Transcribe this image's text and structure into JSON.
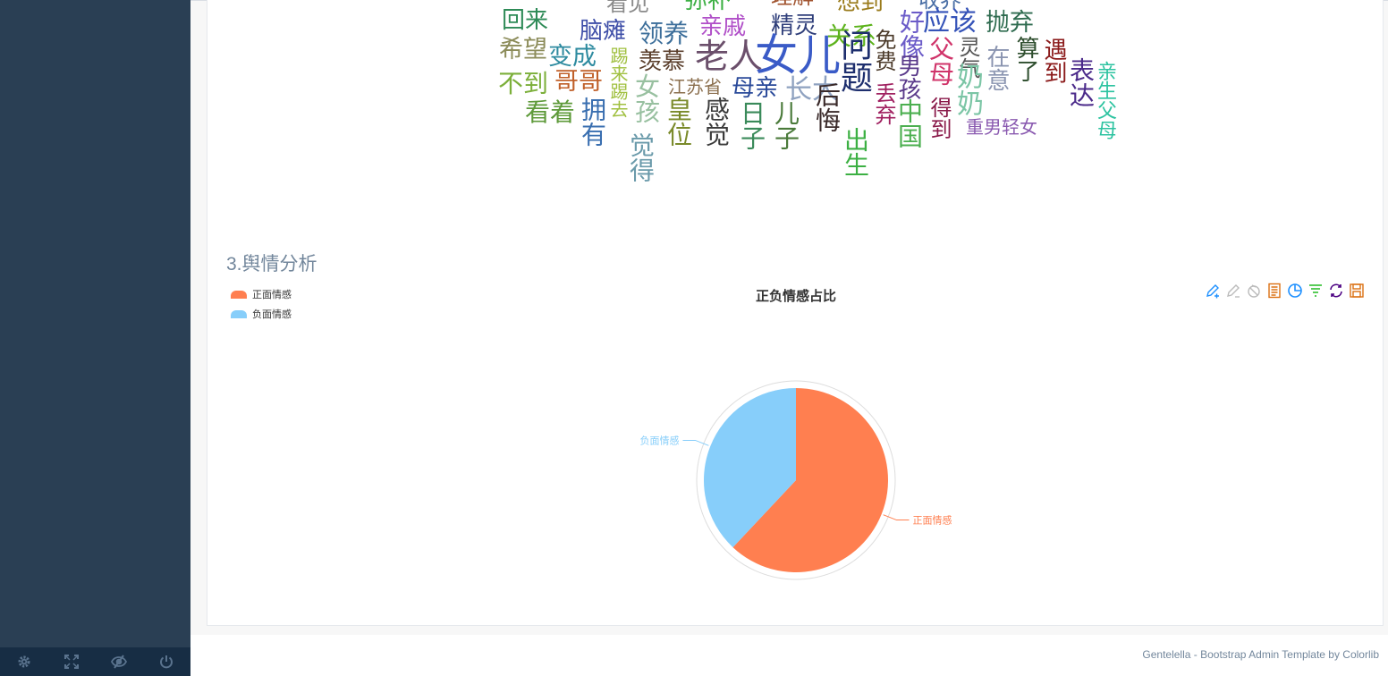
{
  "sidebar": {
    "footer": [
      {
        "icon": "gear-icon",
        "label": "Settings"
      },
      {
        "icon": "fullscreen-icon",
        "label": "FullScreen"
      },
      {
        "icon": "eye-slash-icon",
        "label": "Lock"
      },
      {
        "icon": "power-icon",
        "label": "Logout"
      }
    ]
  },
  "wordcloud": {
    "words": [
      {
        "text": "回来",
        "color": "#2E8B57"
      },
      {
        "text": "看见",
        "color": "#8A8A8A"
      },
      {
        "text": "弥补",
        "color": "#3CB043"
      },
      {
        "text": "理解",
        "color": "#A0522D"
      },
      {
        "text": "想到",
        "color": "#9A7B1C"
      },
      {
        "text": "收养",
        "color": "#4A6FA5"
      },
      {
        "text": "亲戚",
        "color": "#B04FC8"
      },
      {
        "text": "精灵",
        "color": "#2F3E7A"
      },
      {
        "text": "关系",
        "color": "#5DB31C"
      },
      {
        "text": "好像",
        "color": "#6B5BC8"
      },
      {
        "text": "应该",
        "color": "#3553B8"
      },
      {
        "text": "抛弃",
        "color": "#2E6B4F"
      },
      {
        "text": "脑瘫",
        "color": "#3F4FA8"
      },
      {
        "text": "领养",
        "color": "#3C6E9A"
      },
      {
        "text": "希望",
        "color": "#8C8C5A"
      },
      {
        "text": "变成",
        "color": "#2E8BA0"
      },
      {
        "text": "老人",
        "color": "#6B4F6B"
      },
      {
        "text": "女儿",
        "color": "#3A5BC7"
      },
      {
        "text": "问题",
        "color": "#1E2F6E"
      },
      {
        "text": "免费",
        "color": "#4B3A2A"
      },
      {
        "text": "男孩",
        "color": "#5A3A8A"
      },
      {
        "text": "父母",
        "color": "#D0346A"
      },
      {
        "text": "灵气",
        "color": "#555555"
      },
      {
        "text": "奶奶",
        "color": "#7BC5A5"
      },
      {
        "text": "在意",
        "color": "#8A94B0"
      },
      {
        "text": "算了",
        "color": "#2F4F2F"
      },
      {
        "text": "遇到",
        "color": "#8B1A1A"
      },
      {
        "text": "表达",
        "color": "#4B2A8A"
      },
      {
        "text": "亲生父母",
        "color": "#2CC3A0"
      },
      {
        "text": "踢来踢去",
        "color": "#A0C040"
      },
      {
        "text": "羡慕",
        "color": "#5A3E2B"
      },
      {
        "text": "不到",
        "color": "#7CAF3A"
      },
      {
        "text": "哥哥",
        "color": "#C0602A"
      },
      {
        "text": "江苏省",
        "color": "#8B6F4E"
      },
      {
        "text": "母亲",
        "color": "#2A4A9A"
      },
      {
        "text": "长大",
        "color": "#8FA2C0"
      },
      {
        "text": "丢弃",
        "color": "#A02060"
      },
      {
        "text": "中国",
        "color": "#4CAF50"
      },
      {
        "text": "看着",
        "color": "#5E9A3A"
      },
      {
        "text": "拥有",
        "color": "#3A6FB0"
      },
      {
        "text": "女孩",
        "color": "#98C0A0"
      },
      {
        "text": "皇位",
        "color": "#7A8A2A"
      },
      {
        "text": "感觉",
        "color": "#3A3A3A"
      },
      {
        "text": "日子",
        "color": "#3A8A5A"
      },
      {
        "text": "儿子",
        "color": "#4A7A3A"
      },
      {
        "text": "后悔",
        "color": "#3A2A2A"
      },
      {
        "text": "出生",
        "color": "#3CB043"
      },
      {
        "text": "得到",
        "color": "#8A1A4A"
      },
      {
        "text": "重男轻女",
        "color": "#8A5AB0"
      },
      {
        "text": "觉得",
        "color": "#6A9AAA"
      }
    ]
  },
  "section": {
    "title": "3.舆情分析"
  },
  "chart_data": {
    "type": "pie",
    "title": "正负情感占比",
    "legend_position": "top-left",
    "slices": [
      {
        "name": "正面情感",
        "value": 62,
        "color": "#FF7F50"
      },
      {
        "name": "负面情感",
        "value": 38,
        "color": "#87CEFA"
      }
    ]
  },
  "toolbox": [
    {
      "icon": "mark-icon",
      "color": "#1E90FF"
    },
    {
      "icon": "mark-undo-icon",
      "color": "#BBBBBB"
    },
    {
      "icon": "mark-clear-icon",
      "color": "#BBBBBB"
    },
    {
      "icon": "data-view-icon",
      "color": "#DB7012"
    },
    {
      "icon": "pie-type-icon",
      "color": "#1E90FF"
    },
    {
      "icon": "funnel-type-icon",
      "color": "#22BB22"
    },
    {
      "icon": "restore-icon",
      "color": "#4B0082"
    },
    {
      "icon": "save-image-icon",
      "color": "#DB7012"
    }
  ],
  "footer": {
    "text": "Gentelella - Bootstrap Admin Template by Colorlib"
  }
}
